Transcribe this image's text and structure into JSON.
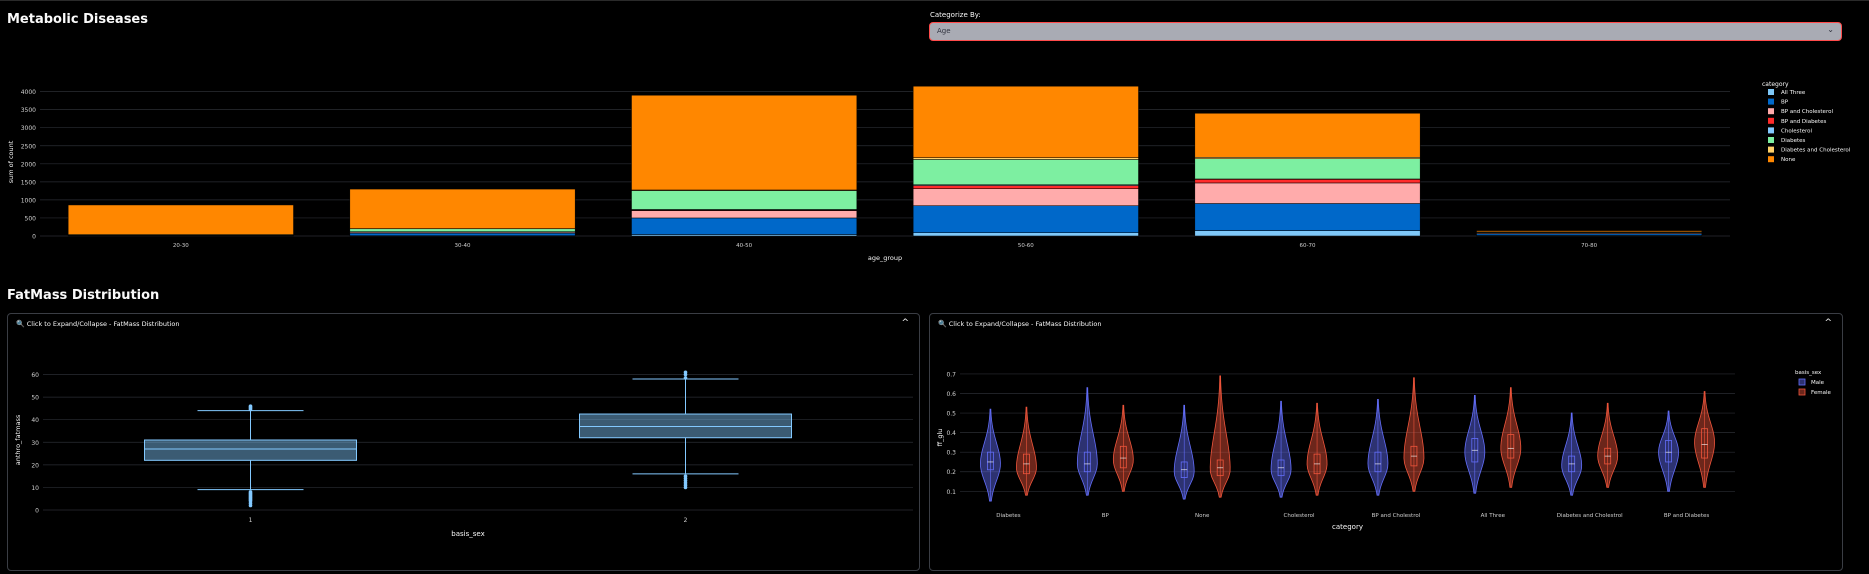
{
  "page": {
    "title": "Metabolic Diseases",
    "section2_title": "FatMass Distribution"
  },
  "filter": {
    "label": "Categorize By:",
    "value": "Age",
    "border_color": "#ff4b4b"
  },
  "legend_colors": {
    "All Three": "#7fc8f8",
    "BP": "#0068c9",
    "BP and Cholesterol": "#ffabab",
    "BP and Diabetes": "#ff2b2b",
    "Cholesterol": "#83c9ff",
    "Diabetes": "#7defa1",
    "Diabetes and Cholesterol": "#ffd16a",
    "None": "#ff8700"
  },
  "chart_bar": {
    "type": "bar",
    "stacked": true,
    "categories": [
      "20-30",
      "30-40",
      "40-50",
      "50-60",
      "60-70",
      "70-80"
    ],
    "legend_title": "category",
    "series": [
      {
        "name": "All Three",
        "color": "#7fc8f8",
        "values": [
          0,
          10,
          40,
          90,
          150,
          15
        ]
      },
      {
        "name": "BP",
        "color": "#0068c9",
        "values": [
          15,
          70,
          460,
          750,
          750,
          45
        ]
      },
      {
        "name": "BP and Cholesterol",
        "color": "#ffabab",
        "values": [
          5,
          30,
          200,
          470,
          570,
          25
        ]
      },
      {
        "name": "BP and Diabetes",
        "color": "#ff2b2b",
        "values": [
          0,
          5,
          20,
          90,
          100,
          5
        ]
      },
      {
        "name": "Cholesterol",
        "color": "#83c9ff",
        "values": [
          0,
          5,
          15,
          20,
          10,
          0
        ]
      },
      {
        "name": "Diabetes",
        "color": "#7defa1",
        "values": [
          20,
          80,
          520,
          700,
          560,
          20
        ]
      },
      {
        "name": "Diabetes and Cholesterol",
        "color": "#ffd16a",
        "values": [
          0,
          5,
          20,
          50,
          40,
          5
        ]
      },
      {
        "name": "None",
        "color": "#ff8700",
        "values": [
          820,
          1095,
          2625,
          1980,
          1220,
          35
        ]
      }
    ],
    "xlabel": "age_group",
    "ylabel": "sum of count",
    "ylim": [
      0,
      4100
    ],
    "yticks": [
      0,
      500,
      1000,
      1500,
      2000,
      2500,
      3000,
      3500,
      4000
    ],
    "grid": true,
    "legend_position": "right"
  },
  "card_left": {
    "header": "Click to Expand/Collapse - FatMass Distribution",
    "collapse_icon": "^"
  },
  "card_right": {
    "header": "Click to Expand/Collapse - FatMass Distribution",
    "collapse_icon": "^"
  },
  "chart_box": {
    "type": "box",
    "categories": [
      "1",
      "2"
    ],
    "xlabel": "basis_sex",
    "ylabel": "anthro_fatmass",
    "ylim": [
      0,
      62
    ],
    "yticks": [
      0,
      10,
      20,
      30,
      40,
      50,
      60
    ],
    "color": "#83c9ff",
    "boxes": [
      {
        "name": "1",
        "min": 9,
        "q1": 22,
        "median": 27,
        "q3": 31,
        "max": 44,
        "outliers": [
          2,
          3,
          4,
          4.5,
          5,
          5.5,
          6,
          6.5,
          7,
          7.5,
          8,
          44.5,
          45,
          45.5,
          46
        ]
      },
      {
        "name": "2",
        "min": 16,
        "q1": 32,
        "median": 37,
        "q3": 42.5,
        "max": 58,
        "outliers": [
          10,
          11,
          12,
          13,
          14,
          15,
          58.5,
          60,
          61
        ]
      }
    ]
  },
  "chart_violin": {
    "type": "violin",
    "categories": [
      "Diabetes",
      "BP",
      "None",
      "Cholesterol",
      "BP and Cholestrol",
      "All Three",
      "Diabetes and Cholestrol",
      "BP and Diabetes"
    ],
    "xlabel": "category",
    "ylabel": "ff_glu",
    "ylim": [
      0.03,
      0.72
    ],
    "yticks": [
      0.1,
      0.2,
      0.3,
      0.4,
      0.5,
      0.6,
      0.7
    ],
    "legend_title": "basis_sex",
    "series": [
      {
        "name": "Male",
        "color": "#636efa",
        "groups": [
          {
            "min": 0.05,
            "q1": 0.21,
            "median": 0.25,
            "q3": 0.3,
            "max": 0.52,
            "peak": 0.24
          },
          {
            "min": 0.08,
            "q1": 0.2,
            "median": 0.24,
            "q3": 0.3,
            "max": 0.63,
            "peak": 0.24
          },
          {
            "min": 0.06,
            "q1": 0.17,
            "median": 0.21,
            "q3": 0.25,
            "max": 0.54,
            "peak": 0.2
          },
          {
            "min": 0.07,
            "q1": 0.18,
            "median": 0.22,
            "q3": 0.26,
            "max": 0.56,
            "peak": 0.21
          },
          {
            "min": 0.08,
            "q1": 0.2,
            "median": 0.24,
            "q3": 0.3,
            "max": 0.57,
            "peak": 0.24
          },
          {
            "min": 0.09,
            "q1": 0.25,
            "median": 0.31,
            "q3": 0.37,
            "max": 0.59,
            "peak": 0.3
          },
          {
            "min": 0.08,
            "q1": 0.2,
            "median": 0.24,
            "q3": 0.28,
            "max": 0.5,
            "peak": 0.23
          },
          {
            "min": 0.1,
            "q1": 0.25,
            "median": 0.3,
            "q3": 0.36,
            "max": 0.51,
            "peak": 0.3
          }
        ]
      },
      {
        "name": "Female",
        "color": "#ef553b",
        "groups": [
          {
            "min": 0.08,
            "q1": 0.19,
            "median": 0.24,
            "q3": 0.29,
            "max": 0.53,
            "peak": 0.22
          },
          {
            "min": 0.1,
            "q1": 0.22,
            "median": 0.27,
            "q3": 0.33,
            "max": 0.54,
            "peak": 0.26
          },
          {
            "min": 0.07,
            "q1": 0.18,
            "median": 0.22,
            "q3": 0.26,
            "max": 0.69,
            "peak": 0.21
          },
          {
            "min": 0.08,
            "q1": 0.19,
            "median": 0.24,
            "q3": 0.29,
            "max": 0.55,
            "peak": 0.24
          },
          {
            "min": 0.1,
            "q1": 0.23,
            "median": 0.28,
            "q3": 0.33,
            "max": 0.68,
            "peak": 0.27
          },
          {
            "min": 0.12,
            "q1": 0.27,
            "median": 0.32,
            "q3": 0.39,
            "max": 0.63,
            "peak": 0.32
          },
          {
            "min": 0.12,
            "q1": 0.24,
            "median": 0.28,
            "q3": 0.32,
            "max": 0.55,
            "peak": 0.28
          },
          {
            "min": 0.12,
            "q1": 0.27,
            "median": 0.34,
            "q3": 0.42,
            "max": 0.61,
            "peak": 0.35
          }
        ]
      }
    ]
  }
}
